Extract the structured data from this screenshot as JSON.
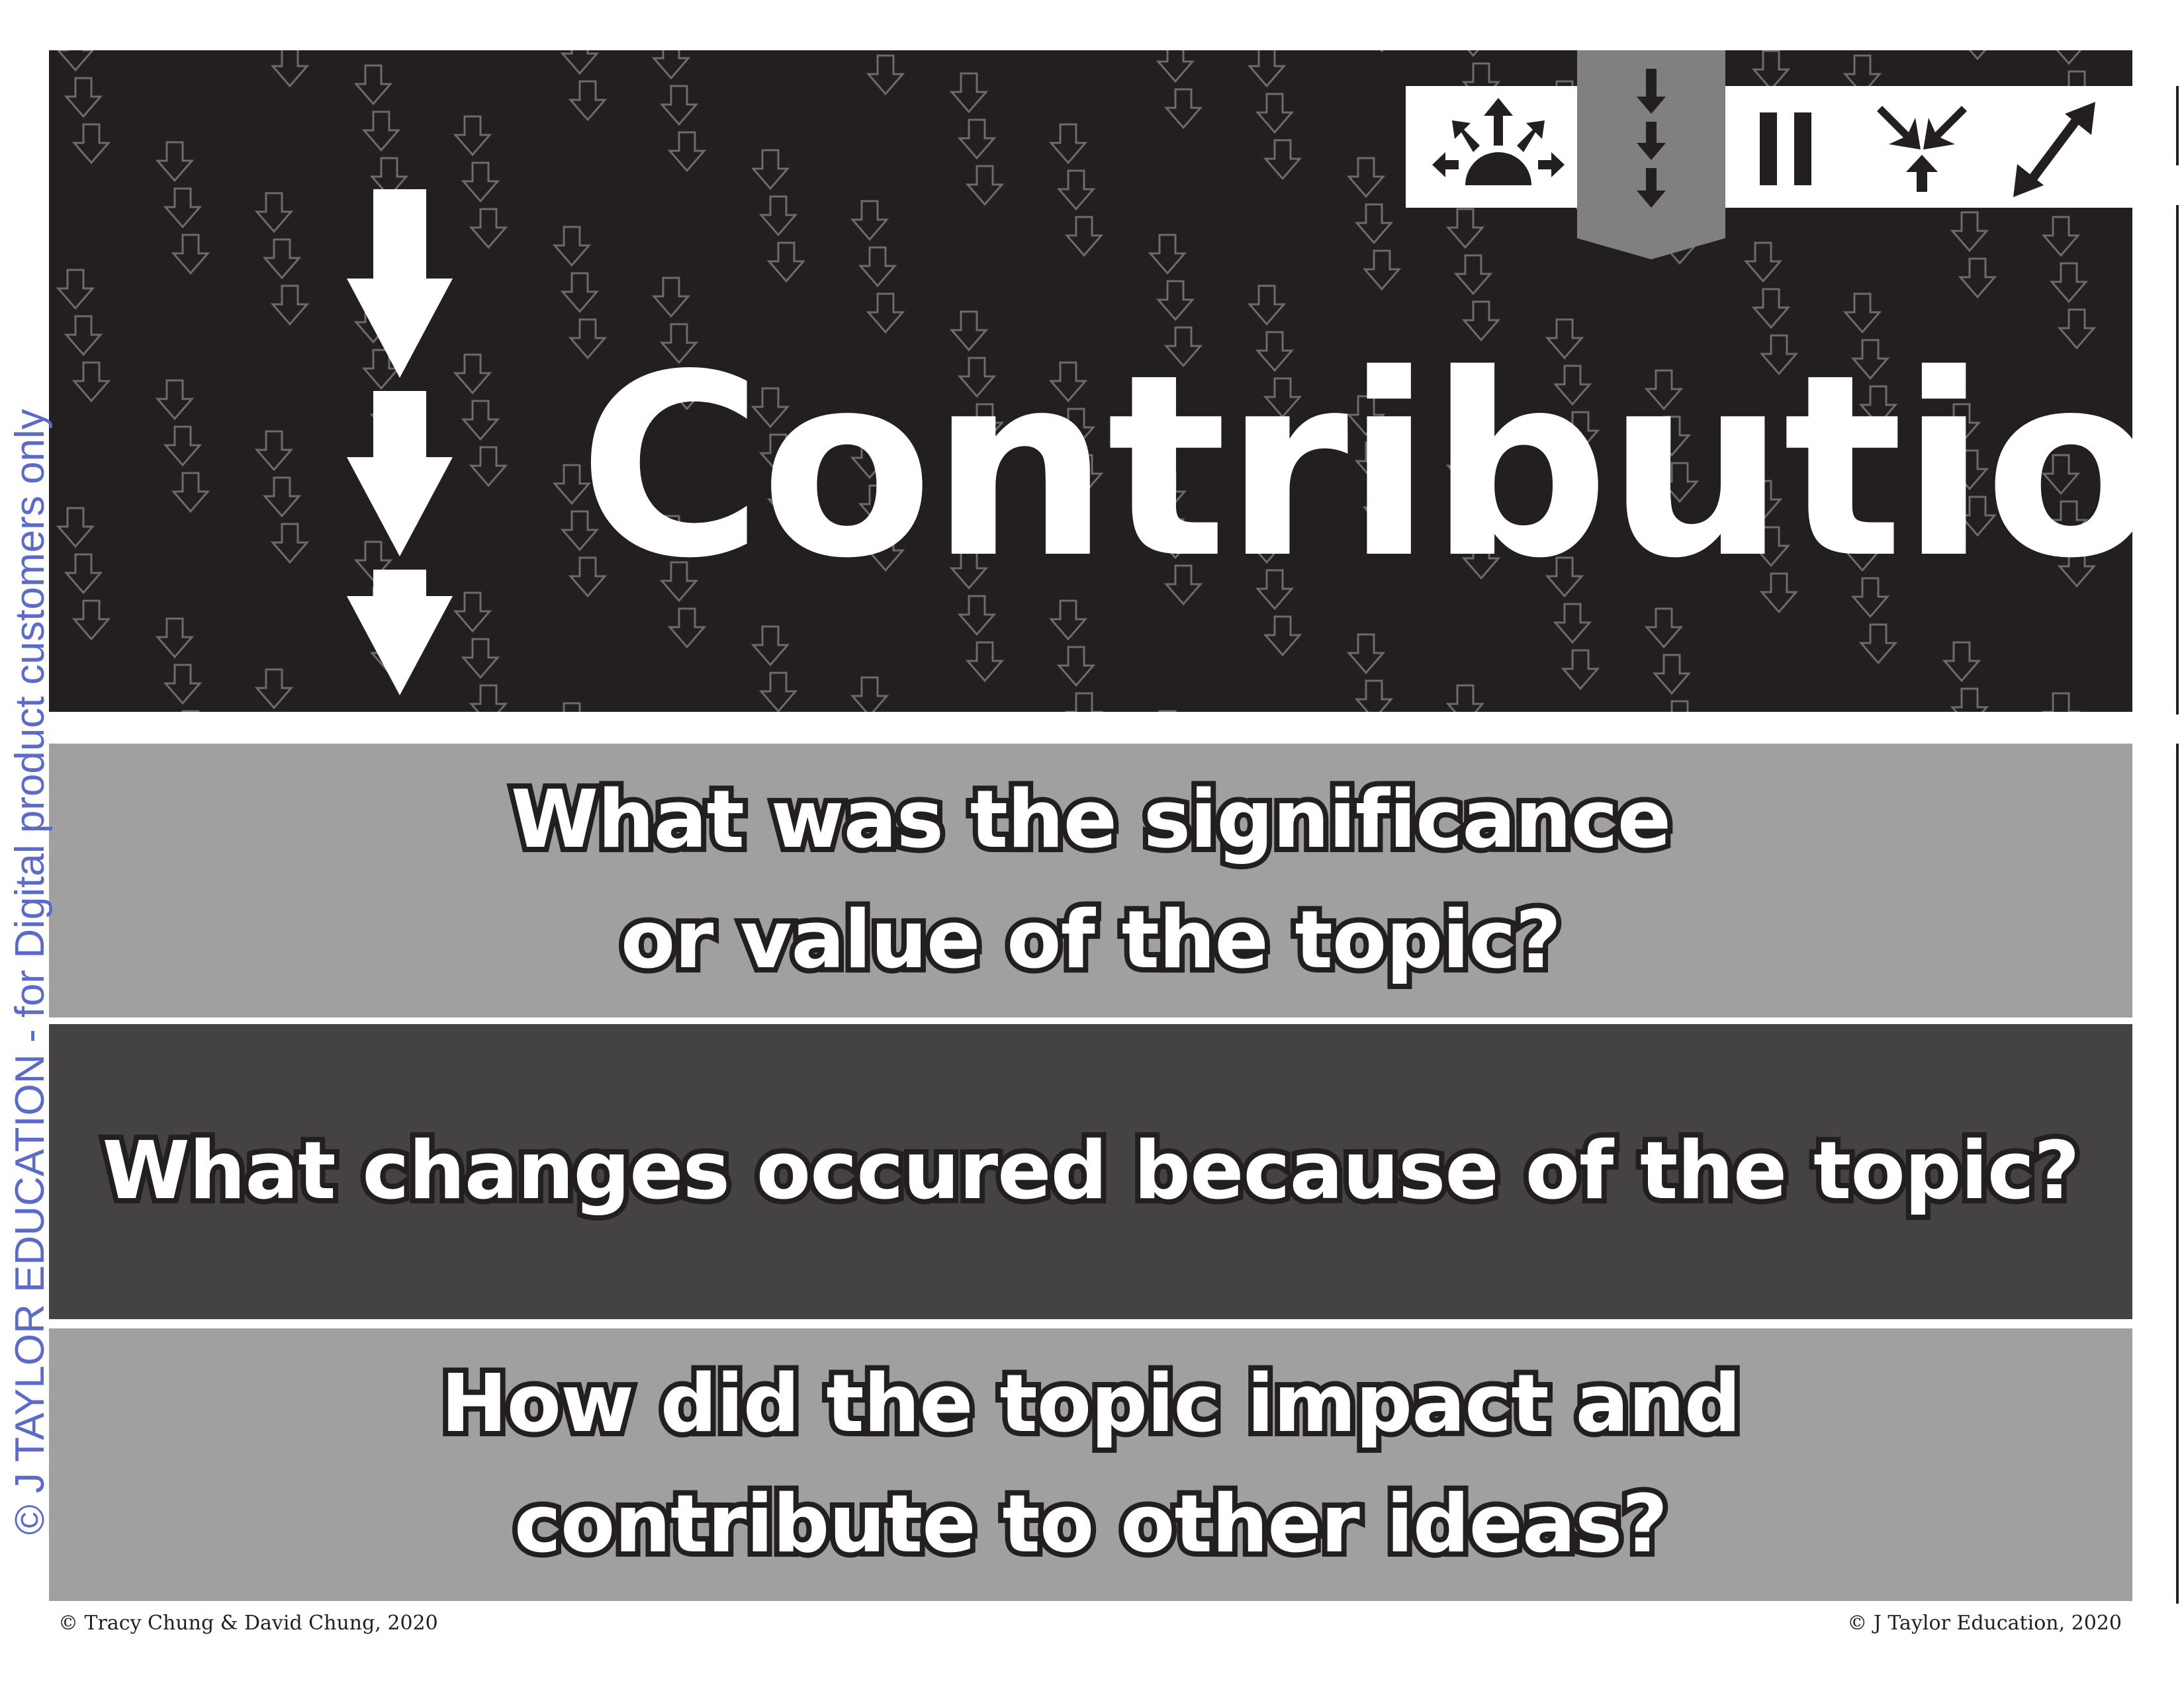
{
  "header": {
    "title": "Contribution",
    "background_color": "#231f20",
    "icons": [
      {
        "name": "big-idea-icon",
        "active": false
      },
      {
        "name": "contribution-icon",
        "active": true
      },
      {
        "name": "parallel-icon",
        "active": false
      },
      {
        "name": "convergence-icon",
        "active": false
      },
      {
        "name": "relationship-icon",
        "active": false
      }
    ]
  },
  "questions": [
    {
      "lines": [
        "What was the significance",
        "or value of the topic?"
      ],
      "color": "#a0a0a0"
    },
    {
      "lines": [
        "What changes occured because of the topic?"
      ],
      "color": "#444242"
    },
    {
      "lines": [
        "How did the topic impact and",
        "contribute to other ideas?"
      ],
      "color": "#a0a0a0"
    }
  ],
  "footer": {
    "left": "© Tracy Chung & David Chung, 2020",
    "right": "© J Taylor Education, 2020"
  },
  "watermark": "© J TAYLOR EDUCATION - for Digital product customers only"
}
